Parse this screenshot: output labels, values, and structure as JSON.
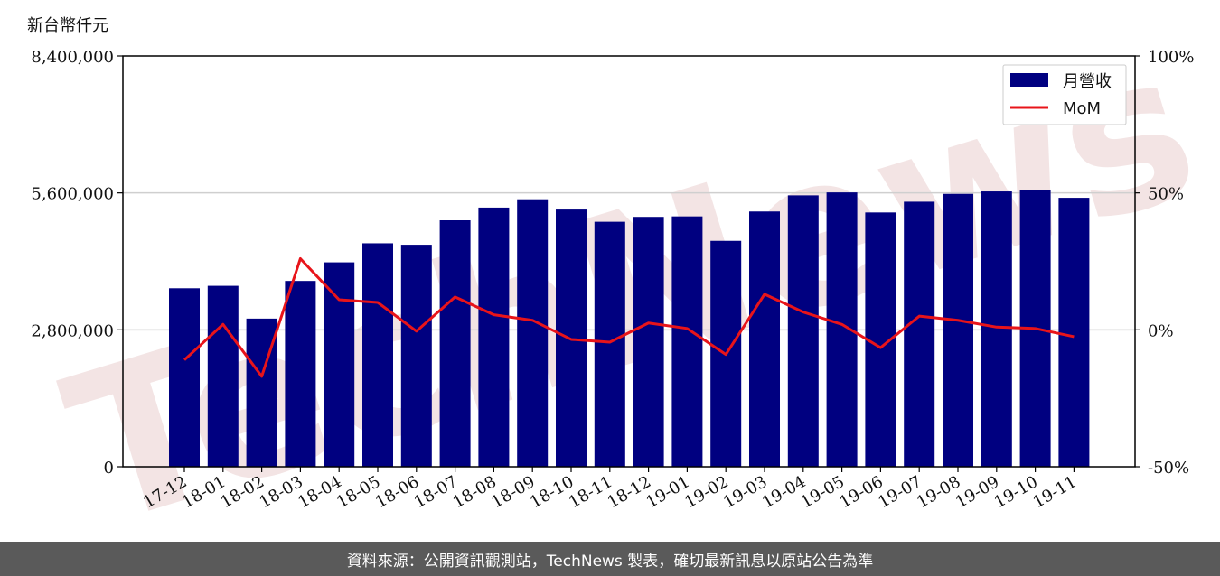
{
  "unit_label": "新台幣仟元",
  "footer_text": "資料來源：公開資訊觀測站，TechNews 製表，確切最新訊息以原站公告為準",
  "watermark_text": "TechNews",
  "colors": {
    "bar": "#000080",
    "line": "#e8141a",
    "grid": "#cfcfcf",
    "watermark": "#f3e4e4",
    "footer_bg": "#5a5a5a"
  },
  "chart_data": {
    "type": "bar",
    "categories": [
      "17-12",
      "18-01",
      "18-02",
      "18-03",
      "18-04",
      "18-05",
      "18-06",
      "18-07",
      "18-08",
      "18-09",
      "18-10",
      "18-11",
      "18-12",
      "19-01",
      "19-02",
      "19-03",
      "19-04",
      "19-05",
      "19-06",
      "19-07",
      "19-08",
      "19-09",
      "19-10",
      "19-11"
    ],
    "series": [
      {
        "name": "月營收",
        "type": "bar",
        "axis": "left",
        "values": [
          3650000,
          3700000,
          3030000,
          3800000,
          4180000,
          4570000,
          4540000,
          5040000,
          5300000,
          5470000,
          5260000,
          5010000,
          5110000,
          5120000,
          4620000,
          5220000,
          5550000,
          5610000,
          5200000,
          5420000,
          5580000,
          5630000,
          5650000,
          5500000
        ]
      },
      {
        "name": "MoM",
        "type": "line",
        "axis": "right",
        "values": [
          -11,
          2,
          -17,
          26,
          11,
          10,
          -0.5,
          12,
          5.5,
          3.5,
          -3.5,
          -4.5,
          2.5,
          0.5,
          -9,
          13,
          6.5,
          2,
          -6.5,
          5,
          3.5,
          1,
          0.5,
          -2.5
        ]
      }
    ],
    "y_left": {
      "min": 0,
      "max": 8400000,
      "ticks": [
        0,
        2800000,
        5600000,
        8400000
      ],
      "tick_labels": [
        "0",
        "2,800,000",
        "5,600,000",
        "8,400,000"
      ]
    },
    "y_right": {
      "min": -50,
      "max": 100,
      "ticks": [
        -50,
        0,
        50,
        100
      ],
      "tick_labels": [
        "-50%",
        "0%",
        "50%",
        "100%"
      ]
    },
    "grid": "horizontal",
    "legend": "top-right"
  }
}
